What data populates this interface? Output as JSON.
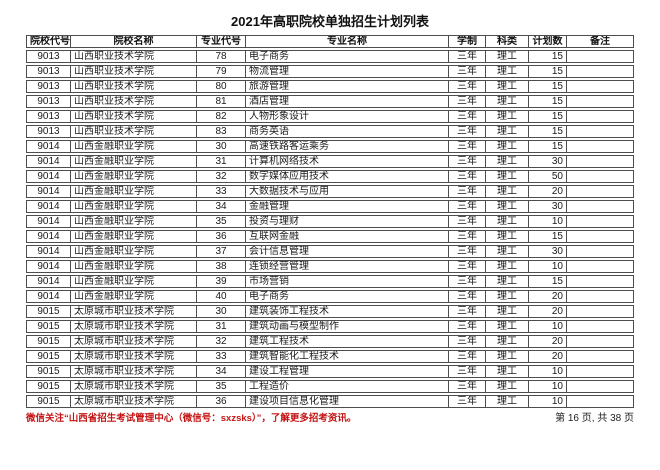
{
  "page": {
    "title": "2021年高职院校单独招生计划列表",
    "footer_note": "微信关注“山西省招生考试管理中心（微信号：sxzsks）”，了解更多招考资讯。",
    "footer_page": "第 16 页, 共 38 页"
  },
  "colors": {
    "footer_note_red": "#c41414",
    "table_border": "#4d4d4d",
    "text": "#1a1a1a"
  },
  "table": {
    "headers": [
      "院校代号",
      "院校名称",
      "专业代号",
      "专业名称",
      "学制",
      "科类",
      "计划数",
      "备注"
    ],
    "header_keys": [
      "college-code",
      "college-name",
      "major-code",
      "major-name",
      "duration",
      "category",
      "plan-count",
      "remark"
    ],
    "rows": [
      [
        "9013",
        "山西职业技术学院",
        "78",
        "电子商务",
        "三年",
        "理工",
        "15",
        ""
      ],
      [
        "9013",
        "山西职业技术学院",
        "79",
        "物流管理",
        "三年",
        "理工",
        "15",
        ""
      ],
      [
        "9013",
        "山西职业技术学院",
        "80",
        "旅游管理",
        "三年",
        "理工",
        "15",
        ""
      ],
      [
        "9013",
        "山西职业技术学院",
        "81",
        "酒店管理",
        "三年",
        "理工",
        "15",
        ""
      ],
      [
        "9013",
        "山西职业技术学院",
        "82",
        "人物形象设计",
        "三年",
        "理工",
        "15",
        ""
      ],
      [
        "9013",
        "山西职业技术学院",
        "83",
        "商务英语",
        "三年",
        "理工",
        "15",
        ""
      ],
      [
        "9014",
        "山西金融职业学院",
        "30",
        "高速铁路客运乘务",
        "三年",
        "理工",
        "15",
        ""
      ],
      [
        "9014",
        "山西金融职业学院",
        "31",
        "计算机网络技术",
        "三年",
        "理工",
        "30",
        ""
      ],
      [
        "9014",
        "山西金融职业学院",
        "32",
        "数字媒体应用技术",
        "三年",
        "理工",
        "50",
        ""
      ],
      [
        "9014",
        "山西金融职业学院",
        "33",
        "大数据技术与应用",
        "三年",
        "理工",
        "20",
        ""
      ],
      [
        "9014",
        "山西金融职业学院",
        "34",
        "金融管理",
        "三年",
        "理工",
        "30",
        ""
      ],
      [
        "9014",
        "山西金融职业学院",
        "35",
        "投资与理财",
        "三年",
        "理工",
        "10",
        ""
      ],
      [
        "9014",
        "山西金融职业学院",
        "36",
        "互联网金融",
        "三年",
        "理工",
        "15",
        ""
      ],
      [
        "9014",
        "山西金融职业学院",
        "37",
        "会计信息管理",
        "三年",
        "理工",
        "30",
        ""
      ],
      [
        "9014",
        "山西金融职业学院",
        "38",
        "连锁经营管理",
        "三年",
        "理工",
        "10",
        ""
      ],
      [
        "9014",
        "山西金融职业学院",
        "39",
        "市场营销",
        "三年",
        "理工",
        "15",
        ""
      ],
      [
        "9014",
        "山西金融职业学院",
        "40",
        "电子商务",
        "三年",
        "理工",
        "20",
        ""
      ],
      [
        "9015",
        "太原城市职业技术学院",
        "30",
        "建筑装饰工程技术",
        "三年",
        "理工",
        "20",
        ""
      ],
      [
        "9015",
        "太原城市职业技术学院",
        "31",
        "建筑动画与模型制作",
        "三年",
        "理工",
        "10",
        ""
      ],
      [
        "9015",
        "太原城市职业技术学院",
        "32",
        "建筑工程技术",
        "三年",
        "理工",
        "20",
        ""
      ],
      [
        "9015",
        "太原城市职业技术学院",
        "33",
        "建筑智能化工程技术",
        "三年",
        "理工",
        "20",
        ""
      ],
      [
        "9015",
        "太原城市职业技术学院",
        "34",
        "建设工程管理",
        "三年",
        "理工",
        "10",
        ""
      ],
      [
        "9015",
        "太原城市职业技术学院",
        "35",
        "工程造价",
        "三年",
        "理工",
        "10",
        ""
      ],
      [
        "9015",
        "太原城市职业技术学院",
        "36",
        "建设项目信息化管理",
        "三年",
        "理工",
        "10",
        ""
      ]
    ]
  }
}
